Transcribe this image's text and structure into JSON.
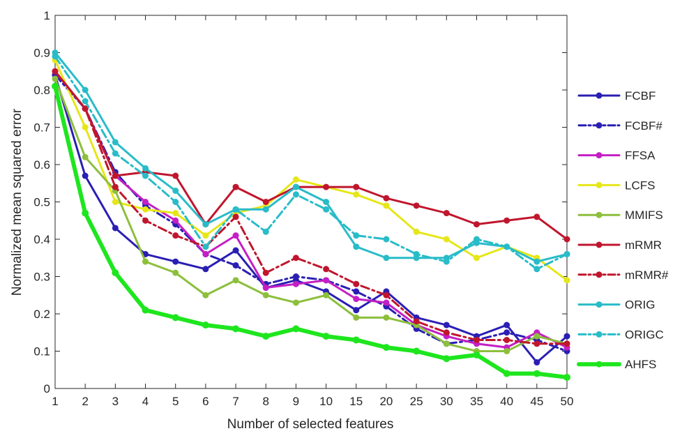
{
  "chart_data": {
    "type": "line",
    "title": "",
    "xlabel": "Number of selected features",
    "ylabel": "Normalized mean squared error",
    "x": [
      "1",
      "2",
      "3",
      "4",
      "5",
      "6",
      "7",
      "8",
      "9",
      "10",
      "15",
      "20",
      "25",
      "30",
      "35",
      "40",
      "45",
      "50"
    ],
    "ylim": [
      0,
      1
    ],
    "yticks": [
      "0",
      "0.1",
      "0.2",
      "0.3",
      "0.4",
      "0.5",
      "0.6",
      "0.7",
      "0.8",
      "0.9",
      "1"
    ],
    "grid": false,
    "legend_position": "right",
    "series": [
      {
        "name": "FCBF",
        "color": "#2a1fb3",
        "dash": "solid",
        "values": [
          0.84,
          0.57,
          0.43,
          0.36,
          0.34,
          0.32,
          0.37,
          0.27,
          0.29,
          0.26,
          0.21,
          0.26,
          0.19,
          0.17,
          0.14,
          0.17,
          0.07,
          0.14
        ]
      },
      {
        "name": "FCBF#",
        "color": "#2a1fb3",
        "dash": "dashdot",
        "values": [
          0.84,
          0.75,
          0.58,
          0.49,
          0.44,
          0.36,
          0.33,
          0.28,
          0.3,
          0.29,
          0.26,
          0.22,
          0.16,
          0.12,
          0.13,
          0.15,
          0.13,
          0.1
        ]
      },
      {
        "name": "FFSA",
        "color": "#c41fc4",
        "dash": "solid",
        "values": [
          0.85,
          0.75,
          0.57,
          0.5,
          0.45,
          0.36,
          0.41,
          0.27,
          0.28,
          0.29,
          0.24,
          0.23,
          0.17,
          0.14,
          0.12,
          0.11,
          0.15,
          0.11
        ]
      },
      {
        "name": "LCFS",
        "color": "#e6e619",
        "dash": "solid",
        "values": [
          0.88,
          0.7,
          0.5,
          0.48,
          0.47,
          0.41,
          0.47,
          0.49,
          0.56,
          0.54,
          0.52,
          0.49,
          0.42,
          0.4,
          0.35,
          0.38,
          0.35,
          0.29
        ]
      },
      {
        "name": "MMIFS",
        "color": "#8cbf3c",
        "dash": "solid",
        "values": [
          0.83,
          0.62,
          0.53,
          0.34,
          0.31,
          0.25,
          0.29,
          0.25,
          0.23,
          0.25,
          0.19,
          0.19,
          0.17,
          0.12,
          0.1,
          0.1,
          0.14,
          0.12
        ]
      },
      {
        "name": "mRMR",
        "color": "#c0162d",
        "dash": "solid",
        "values": [
          0.85,
          0.75,
          0.57,
          0.58,
          0.57,
          0.44,
          0.54,
          0.5,
          0.54,
          0.54,
          0.54,
          0.51,
          0.49,
          0.47,
          0.44,
          0.45,
          0.46,
          0.4
        ]
      },
      {
        "name": "mRMR#",
        "color": "#c0162d",
        "dash": "dashdot",
        "values": [
          0.85,
          0.75,
          0.54,
          0.45,
          0.41,
          0.38,
          0.46,
          0.31,
          0.35,
          0.32,
          0.28,
          0.25,
          0.18,
          0.15,
          0.13,
          0.13,
          0.12,
          0.12
        ]
      },
      {
        "name": "ORIG",
        "color": "#28bcc8",
        "dash": "solid",
        "values": [
          0.9,
          0.8,
          0.66,
          0.59,
          0.53,
          0.44,
          0.48,
          0.48,
          0.54,
          0.5,
          0.38,
          0.35,
          0.35,
          0.35,
          0.39,
          0.38,
          0.34,
          0.36
        ]
      },
      {
        "name": "ORIGC",
        "color": "#28bcc8",
        "dash": "dashdot",
        "values": [
          0.89,
          0.77,
          0.63,
          0.57,
          0.5,
          0.38,
          0.48,
          0.42,
          0.52,
          0.48,
          0.41,
          0.4,
          0.36,
          0.34,
          0.4,
          0.38,
          0.32,
          0.36
        ]
      },
      {
        "name": "AHFS",
        "color": "#1ee61e",
        "dash": "solid",
        "bold": true,
        "values": [
          0.81,
          0.47,
          0.31,
          0.21,
          0.19,
          0.17,
          0.16,
          0.14,
          0.16,
          0.14,
          0.13,
          0.11,
          0.1,
          0.08,
          0.09,
          0.04,
          0.04,
          0.03
        ]
      }
    ]
  }
}
